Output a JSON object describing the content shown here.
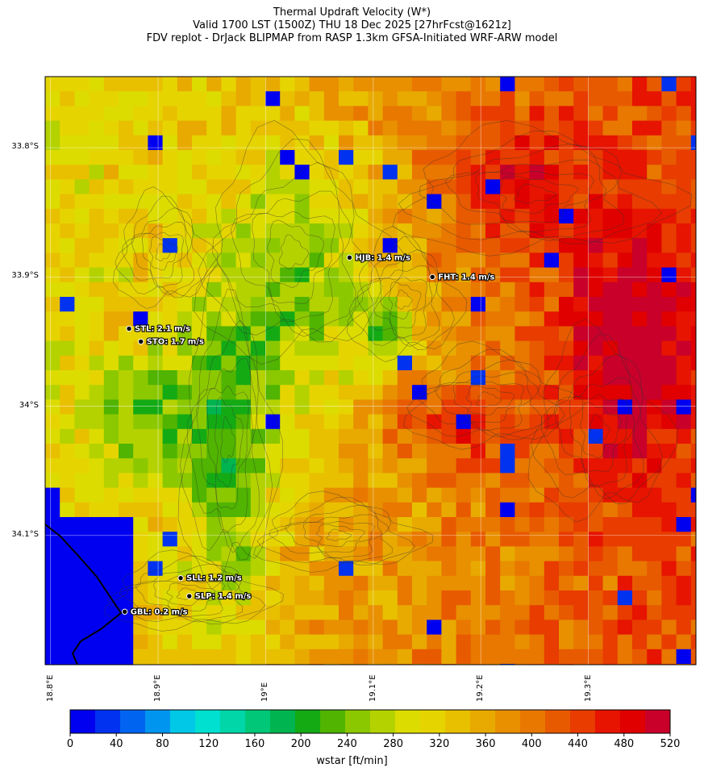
{
  "title": {
    "line1": "Thermal Updraft Velocity (W*)",
    "line2": "Valid 1700 LST (1500Z) THU 18 Dec 2025 [27hrFcst@1621z]",
    "line3": "FDV replot - DrJack BLIPMAP from RASP 1.3km GFSA-Initiated WRF-ARW model"
  },
  "map": {
    "lon_range": [
      18.795,
      19.4
    ],
    "lat_range": [
      -34.2,
      -33.745
    ],
    "lat_ticks": [
      {
        "value": -33.8,
        "label": "33.8°S"
      },
      {
        "value": -33.9,
        "label": "33.9°S"
      },
      {
        "value": -34.0,
        "label": "34°S"
      },
      {
        "value": -34.1,
        "label": "34.1°S"
      }
    ],
    "lon_ticks": [
      {
        "value": 18.8,
        "label": "18.8°E"
      },
      {
        "value": 18.9,
        "label": "18.9°E"
      },
      {
        "value": 19.0,
        "label": "19°E"
      },
      {
        "value": 19.1,
        "label": "19.1°E"
      },
      {
        "value": 19.2,
        "label": "19.2°E"
      },
      {
        "value": 19.3,
        "label": "19.3°E"
      }
    ],
    "stations": [
      {
        "code": "HJB",
        "label": "HJB: 1.4 m/s",
        "lon": 19.078,
        "lat": -33.885
      },
      {
        "code": "FHT",
        "label": "FHT: 1.4 m/s",
        "lon": 19.155,
        "lat": -33.9
      },
      {
        "code": "STL",
        "label": "STL: 2.1 m/s",
        "lon": 18.873,
        "lat": -33.94
      },
      {
        "code": "STO",
        "label": "STO: 1.7 m/s",
        "lon": 18.884,
        "lat": -33.95
      },
      {
        "code": "SLL",
        "label": "SLL: 1.2 m/s",
        "lon": 18.921,
        "lat": -34.133
      },
      {
        "code": "SLP",
        "label": "SLP: 1.4 m/s",
        "lon": 18.929,
        "lat": -34.147
      },
      {
        "code": "GBL",
        "label": "GBL: 0.2 m/s",
        "lon": 18.869,
        "lat": -34.159
      }
    ]
  },
  "colorbar": {
    "label": "wstar [ft/min]",
    "min": 0,
    "max": 520,
    "tick_values": [
      0,
      40,
      80,
      120,
      160,
      200,
      240,
      280,
      320,
      360,
      400,
      440,
      480,
      520
    ],
    "tick_labels": [
      "0",
      "40",
      "80",
      "120",
      "160",
      "200",
      "240",
      "280",
      "320",
      "360",
      "400",
      "440",
      "480",
      "520"
    ],
    "colors": [
      "#0000f0",
      "#0032f0",
      "#0064f0",
      "#0096f0",
      "#00c8e6",
      "#00e0d0",
      "#00d6a8",
      "#00c878",
      "#00b450",
      "#14aa14",
      "#50b400",
      "#8cc800",
      "#b4d200",
      "#dcdc00",
      "#e6d400",
      "#e8c000",
      "#e8aa00",
      "#e89000",
      "#e87800",
      "#e85a00",
      "#e83c00",
      "#e61400",
      "#e00000",
      "#c8002a"
    ]
  }
}
